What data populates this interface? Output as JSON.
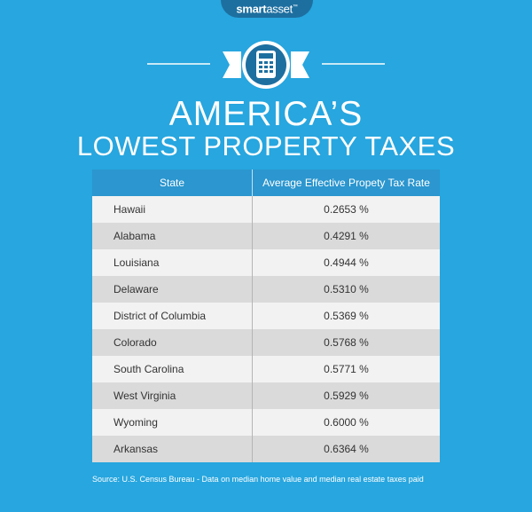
{
  "brand": {
    "bold": "smart",
    "light": "asset",
    "mark": "™"
  },
  "title": "AMERICA’S",
  "subtitle": "LOWEST PROPERTY TAXES",
  "icon": "calculator-icon",
  "colors": {
    "background": "#27a6df",
    "header": "#2b96cf",
    "emblem": "#1d6fa0"
  },
  "table": {
    "headers": [
      "State",
      "Average Effective Propety Tax Rate"
    ],
    "rows": [
      {
        "state": "Hawaii",
        "rate": "0.2653 %"
      },
      {
        "state": "Alabama",
        "rate": "0.4291 %"
      },
      {
        "state": "Louisiana",
        "rate": "0.4944 %"
      },
      {
        "state": "Delaware",
        "rate": "0.5310 %"
      },
      {
        "state": "District of Columbia",
        "rate": "0.5369 %"
      },
      {
        "state": "Colorado",
        "rate": "0.5768 %"
      },
      {
        "state": "South Carolina",
        "rate": "0.5771 %"
      },
      {
        "state": "West Virginia",
        "rate": "0.5929 %"
      },
      {
        "state": "Wyoming",
        "rate": "0.6000 %"
      },
      {
        "state": "Arkansas",
        "rate": "0.6364 %"
      }
    ]
  },
  "source": "Source: U.S. Census Bureau - Data on median home value and median real estate taxes paid"
}
